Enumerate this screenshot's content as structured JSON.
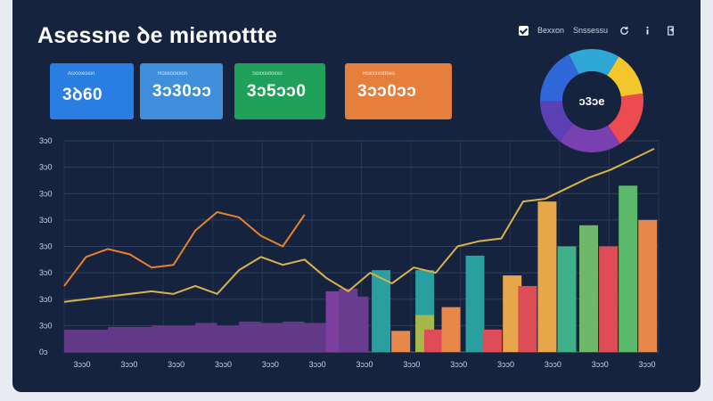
{
  "app": {
    "title": "Asessne ꝺe miemottte"
  },
  "header": {
    "item1": "Bexxon",
    "item2": "Snssessu",
    "icon1": "refresh-icon",
    "icon2": "info-icon",
    "icon3": "export-icon"
  },
  "cards": [
    {
      "label": "Asxxxesion",
      "value": "3ꝺ60",
      "color": "#2a7de1"
    },
    {
      "label": "Roxxooxxon",
      "value": "3ɔ30ɔɔ",
      "color": "#3f8fdc"
    },
    {
      "label": "Soxxxxtoxxo",
      "value": "3ɔ5ɔɔ0",
      "color": "#1fa15a"
    },
    {
      "label": "Roxxxxottoes",
      "value": "3ɔɔ0ɔɔ",
      "color": "#e67f3b"
    }
  ],
  "donut": {
    "center_label": "ɔ3ɔe",
    "segment_colors": [
      "#f3c62b",
      "#ec4b4f",
      "#7a3fb1",
      "#5a3fb5",
      "#2f67d8",
      "#2fa7d6"
    ],
    "segment_values": [
      0.14,
      0.18,
      0.2,
      0.14,
      0.18,
      0.16
    ]
  },
  "chart_data": {
    "type": "bar",
    "y_tick_labels": [
      "3ɔ0",
      "3ɔ0",
      "3ɔ0",
      "3ɔ0",
      "3ɔ0",
      "3ɔ0",
      "3ɔ0",
      "3ɔ0",
      "0ɔ"
    ],
    "x_tick_labels": [
      "3ɔɔ0",
      "3ɔɔ0",
      "3ɔɔ0",
      "3ɔɔ0",
      "3ɔɔ0",
      "3ɔɔ0",
      "3ɔɔ0",
      "3ɔɔ0",
      "3ɔɔ0",
      "3ɔɔ0",
      "3ɔɔ0",
      "3ɔɔ0",
      "3ɔɔ0"
    ],
    "ylim": [
      0,
      8
    ],
    "grid": true,
    "area_series": {
      "color": "#6a3c8f",
      "x": [
        0,
        0.5,
        1,
        1.5,
        2,
        2.5,
        3,
        3.5,
        4,
        4.5,
        5,
        5.5,
        6
      ],
      "values": [
        0.85,
        0.85,
        0.95,
        0.95,
        1.0,
        1.0,
        1.1,
        1.0,
        1.15,
        1.1,
        1.15,
        1.1,
        1.2
      ]
    },
    "bars": [
      {
        "x": 6.2,
        "value": 2.3,
        "color": "#7c3fa0"
      },
      {
        "x": 6.5,
        "value": 2.4,
        "color": "#6a3c8f"
      },
      {
        "x": 6.75,
        "value": 2.1,
        "color": "#6a3c8f"
      },
      {
        "x": 7.25,
        "value": 3.1,
        "color": "#2a9fa0"
      },
      {
        "x": 7.7,
        "value": 0.8,
        "color": "#e8884a"
      },
      {
        "x": 8.25,
        "value": 3.1,
        "color": "#2a9fa0"
      },
      {
        "x": 8.25,
        "value": 1.4,
        "color": "#a7b84a"
      },
      {
        "x": 8.45,
        "value": 0.85,
        "color": "#dd4c57"
      },
      {
        "x": 8.85,
        "value": 1.7,
        "color": "#e8884a"
      },
      {
        "x": 9.4,
        "value": 3.65,
        "color": "#2a9fa0"
      },
      {
        "x": 9.8,
        "value": 0.85,
        "color": "#dd4c57"
      },
      {
        "x": 10.25,
        "value": 2.9,
        "color": "#e8a64a"
      },
      {
        "x": 10.6,
        "value": 2.5,
        "color": "#dd4c57"
      },
      {
        "x": 11.05,
        "value": 5.7,
        "color": "#e8a64a"
      },
      {
        "x": 11.5,
        "value": 4.0,
        "color": "#3fb08a"
      },
      {
        "x": 12.0,
        "value": 4.8,
        "color": "#6fb86a"
      },
      {
        "x": 12.45,
        "value": 4.0,
        "color": "#dd4c57"
      },
      {
        "x": 12.9,
        "value": 6.3,
        "color": "#5ab86a"
      },
      {
        "x": 13.35,
        "value": 5.0,
        "color": "#e8884a"
      }
    ],
    "series": [
      {
        "color": "#e8832c",
        "x": [
          0,
          0.5,
          1,
          1.5,
          2,
          2.5,
          3,
          3.5,
          4,
          4.5,
          5,
          5.5
        ],
        "values": [
          2.5,
          3.6,
          3.9,
          3.7,
          3.2,
          3.3,
          4.6,
          5.3,
          5.1,
          4.4,
          4.0,
          5.2
        ]
      },
      {
        "color": "#d9b34a",
        "x": [
          0,
          1,
          2,
          2.5,
          3,
          3.5,
          4,
          4.5,
          5,
          5.5,
          6,
          6.5,
          7,
          7.5,
          8,
          8.5,
          9,
          9.5,
          10,
          10.5,
          11,
          11.5,
          12,
          12.5,
          13,
          13.5
        ],
        "values": [
          1.9,
          2.1,
          2.3,
          2.2,
          2.5,
          2.2,
          3.1,
          3.6,
          3.3,
          3.5,
          2.8,
          2.3,
          3.0,
          2.6,
          3.2,
          3.0,
          4.0,
          4.2,
          4.3,
          5.7,
          5.8,
          6.2,
          6.6,
          6.9,
          7.3,
          7.7
        ]
      }
    ]
  }
}
